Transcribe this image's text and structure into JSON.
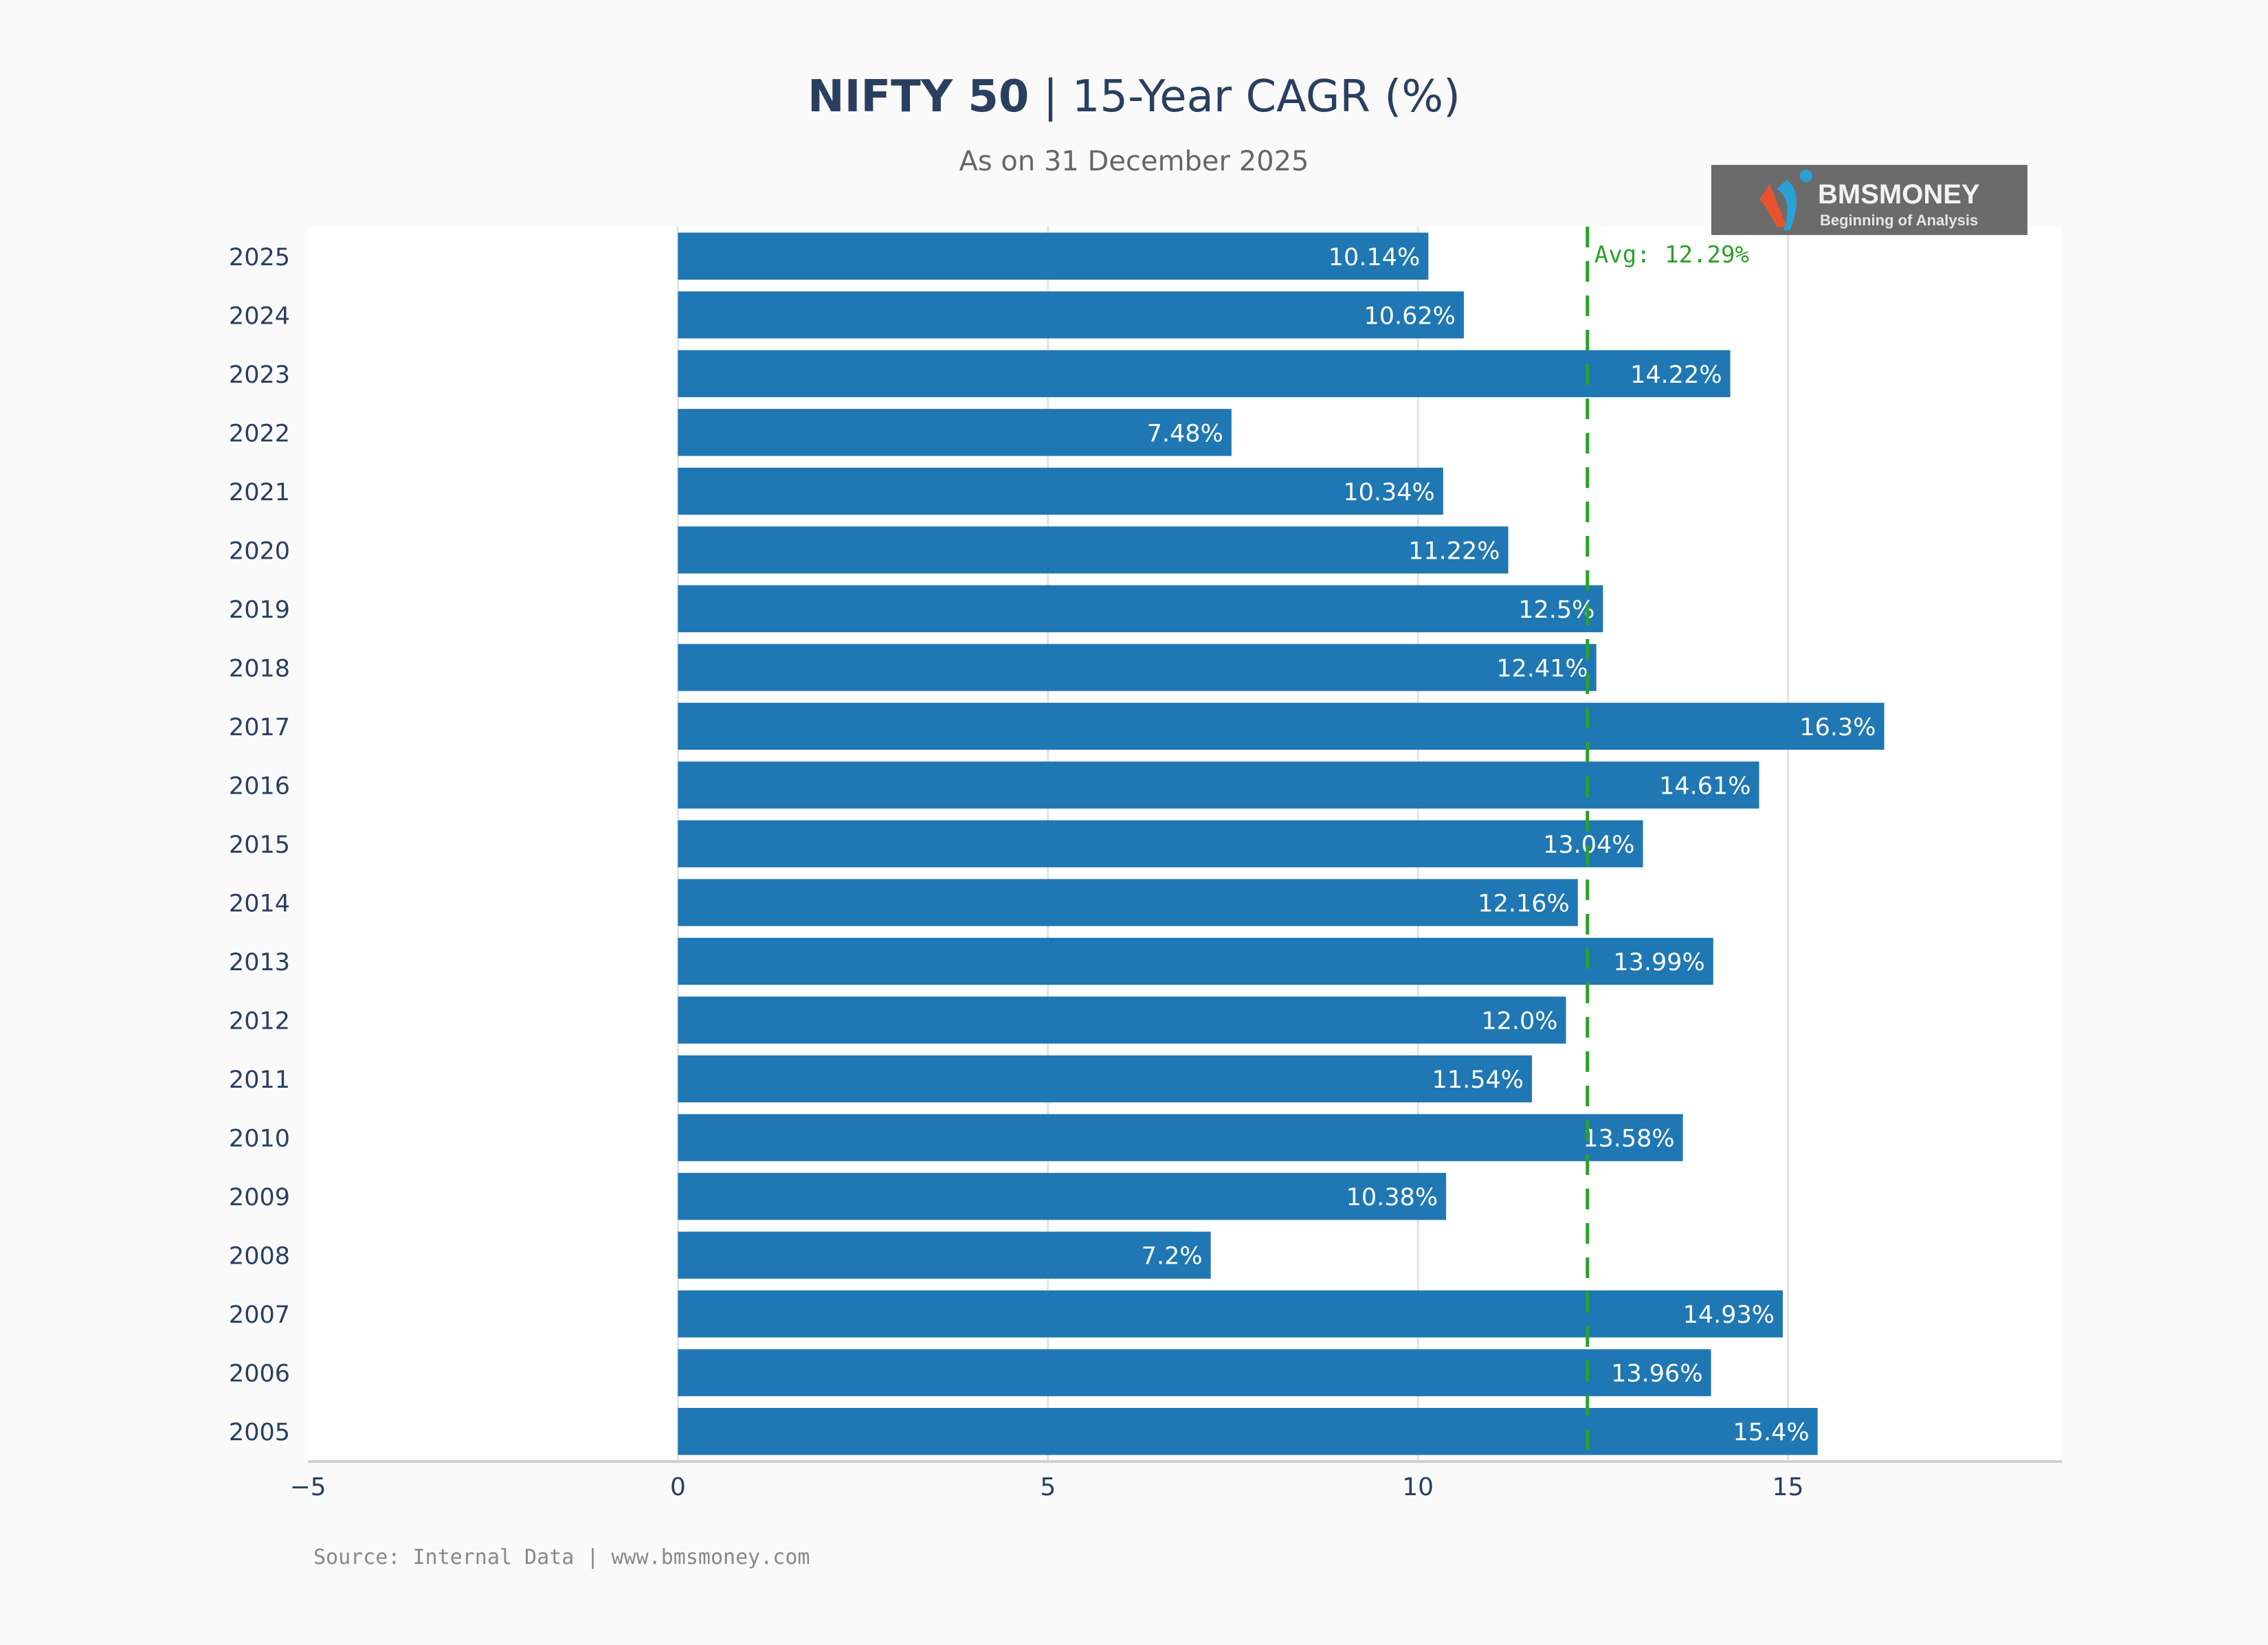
{
  "title": {
    "bold": "NIFTY 50",
    "separator": " | ",
    "rest": "15-Year CAGR (%)"
  },
  "subtitle": "As on 31 December 2025",
  "logo": {
    "name": "BMSMONEY",
    "tagline": "Beginning of Analysis"
  },
  "source": "Source: Internal Data | www.bmsmoney.com",
  "chart_data": {
    "type": "bar",
    "orientation": "horizontal",
    "title": "NIFTY 50 | 15-Year CAGR (%)",
    "subtitle": "As on 31 December 2025",
    "xlabel": "",
    "ylabel": "",
    "xlim": [
      -5,
      18.7
    ],
    "xticks": [
      -5,
      0,
      5,
      10,
      15
    ],
    "xtick_labels": [
      "−5",
      "0",
      "5",
      "10",
      "15"
    ],
    "grid": true,
    "categories": [
      "2025",
      "2024",
      "2023",
      "2022",
      "2021",
      "2020",
      "2019",
      "2018",
      "2017",
      "2016",
      "2015",
      "2014",
      "2013",
      "2012",
      "2011",
      "2010",
      "2009",
      "2008",
      "2007",
      "2006",
      "2005"
    ],
    "values": [
      10.14,
      10.62,
      14.22,
      7.48,
      10.34,
      11.22,
      12.5,
      12.41,
      16.3,
      14.61,
      13.04,
      12.16,
      13.99,
      12.0,
      11.54,
      13.58,
      10.38,
      7.2,
      14.93,
      13.96,
      15.4
    ],
    "data_labels": [
      "10.14%",
      "10.62%",
      "14.22%",
      "7.48%",
      "10.34%",
      "11.22%",
      "12.5%",
      "12.41%",
      "16.3%",
      "14.61%",
      "13.04%",
      "12.16%",
      "13.99%",
      "12.0%",
      "11.54%",
      "13.58%",
      "10.38%",
      "7.2%",
      "14.93%",
      "13.96%",
      "15.4%"
    ],
    "average": {
      "value": 12.29,
      "label": "Avg: 12.29%"
    },
    "colors": {
      "bar": "#1f77b4",
      "average": "#2ca02c",
      "text": "#2a3f5f"
    }
  }
}
